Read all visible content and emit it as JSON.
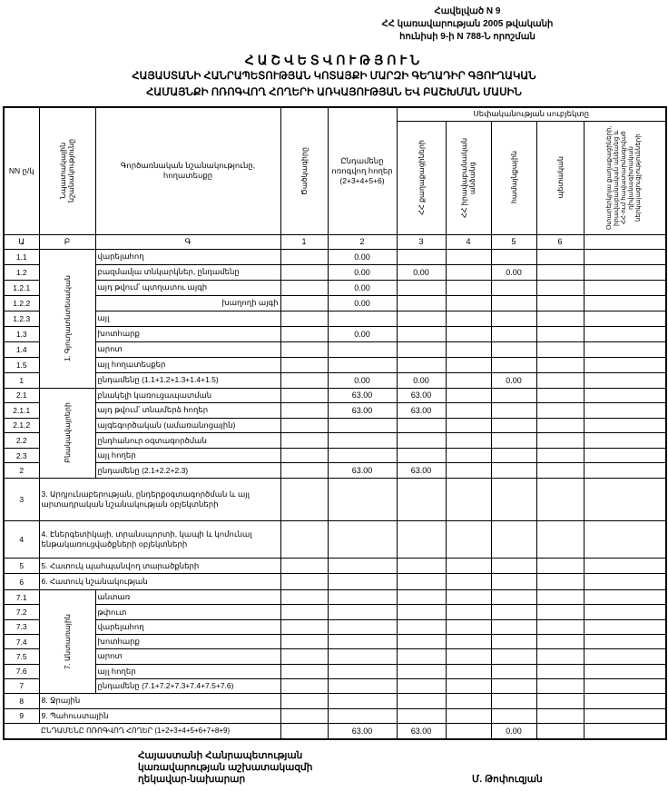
{
  "annex": {
    "line1": "Հավելված N 9",
    "line2": "ՀՀ կառավարության 2005 թվականի",
    "line3": "հունիսի 9-ի N 788-Ն որոշման"
  },
  "title": {
    "main": "ՀԱՇՎԵՏՎՈՒԹՅՈՒՆ",
    "line2": "ՀԱՅԱՍՏԱՆԻ ՀԱՆՐԱՊԵՏՈՒԹՅԱՆ ԿՈՏԱՅՔԻ ՄԱՐԶԻ ԳԵՂԱԴԻՐ ԳՅՈՒՂԱԿԱՆ",
    "line3": "ՀԱՄԱՅՆՔԻ ՈՌՈԳՎՈՂ ՀՈՂԵՐԻ ԱՌԿԱՅՈՒԹՅԱՆ ԵՎ ԲԱՇԽՄԱՆ ՄԱՍԻՆ"
  },
  "table": {
    "headers": {
      "nn": "NN ը/կ",
      "purpose": "Նպատակային նշանակությունը",
      "functional": "Գործառնական նշանակությունը, հողատեսքը",
      "code": "Ծածկագիրը",
      "total": "Ընդամենը ոռոգվող հողեր (2+3+4+5+6)",
      "ownership": "Սեփականության սուբյեկտը",
      "owners": [
        "ՀՀ քաղաքացիների",
        "ՀՀ իրավաբանական անձանց",
        "համայնքային",
        "պետական",
        "Օտարերկրյա քաղաքացիների, իրավաբանական անձանց և ՀՀ-ում հավատարմագրված դիվանագիտական ներկայացուցչությունների"
      ]
    },
    "column_numbers": [
      "Ա",
      "Բ",
      "Գ",
      "1",
      "2",
      "3",
      "4",
      "5",
      "6"
    ],
    "groups": [
      {
        "label": "1. Գյուղատնտեսական",
        "rows": [
          {
            "code": "1.1",
            "desc": "վարելահող",
            "values": [
              "",
              "0.00",
              "",
              "",
              "",
              "",
              ""
            ]
          },
          {
            "code": "1.2",
            "desc": "բազմամյա տնկարկներ, ընդամենը",
            "values": [
              "",
              "0.00",
              "0.00",
              "",
              "0.00",
              "",
              ""
            ]
          },
          {
            "code": "1.2.1",
            "desc": "այդ թվում՝ պտղատու այգի",
            "values": [
              "",
              "0.00",
              "",
              "",
              "",
              "",
              ""
            ]
          },
          {
            "code": "1.2.2",
            "desc": "խաղողի այգի",
            "indent": true,
            "values": [
              "",
              "0.00",
              "",
              "",
              "",
              "",
              ""
            ]
          },
          {
            "code": "1.2.3",
            "desc": "այլ",
            "values": [
              "",
              "",
              "",
              "",
              "",
              "",
              ""
            ]
          },
          {
            "code": "1.3",
            "desc": "խոտհարք",
            "values": [
              "",
              "0.00",
              "",
              "",
              "",
              "",
              ""
            ]
          },
          {
            "code": "1.4",
            "desc": "արոտ",
            "values": [
              "",
              "",
              "",
              "",
              "",
              "",
              ""
            ]
          },
          {
            "code": "1.5",
            "desc": "այլ հողատեսքեր",
            "values": [
              "",
              "",
              "",
              "",
              "",
              "",
              ""
            ]
          },
          {
            "code": "1",
            "desc": "ընդամենը (1.1+1.2+1.3+1.4+1.5)",
            "values": [
              "",
              "0.00",
              "0.00",
              "",
              "0.00",
              "",
              ""
            ]
          }
        ]
      },
      {
        "label": "Բնակավայրերի",
        "rows": [
          {
            "code": "2.1",
            "desc": "բնակելի կառուցապատման",
            "values": [
              "",
              "63.00",
              "63.00",
              "",
              "",
              "",
              ""
            ]
          },
          {
            "code": "2.1.1",
            "desc": "այդ թվում՝ տնամերձ հողեր",
            "values": [
              "",
              "63.00",
              "63.00",
              "",
              "",
              "",
              ""
            ]
          },
          {
            "code": "2.1.2",
            "desc": "այգեգործական (ամառանոցային)",
            "values": [
              "",
              "",
              "",
              "",
              "",
              "",
              ""
            ]
          },
          {
            "code": "2.2",
            "desc": "ընդհանուր օգտագործման",
            "values": [
              "",
              "",
              "",
              "",
              "",
              "",
              ""
            ]
          },
          {
            "code": "2.3",
            "desc": "այլ հողեր",
            "values": [
              "",
              "",
              "",
              "",
              "",
              "",
              ""
            ]
          },
          {
            "code": "2",
            "desc": "ընդամենը (2.1+2.2+2.3)",
            "values": [
              "",
              "63.00",
              "63.00",
              "",
              "",
              "",
              ""
            ]
          }
        ]
      }
    ],
    "single_rows": [
      {
        "code": "3",
        "desc": "3. Արդյունաբերության, ընդերքօգտագործման և այլ արտադրական նշանակության օբյեկտների",
        "values": [
          "",
          "",
          "",
          "",
          "",
          "",
          ""
        ]
      },
      {
        "code": "4",
        "desc": "4. Էներգետիկայի, տրանսպորտի, կապի և կոմունալ ենթակառուցվածքների օբյեկտների",
        "values": [
          "",
          "",
          "",
          "",
          "",
          "",
          ""
        ]
      },
      {
        "code": "5",
        "desc": "5. Հատուկ պահպանվող տարածքների",
        "values": [
          "",
          "",
          "",
          "",
          "",
          "",
          ""
        ]
      },
      {
        "code": "6",
        "desc": "6. Հատուկ նշանակության",
        "values": [
          "",
          "",
          "",
          "",
          "",
          "",
          ""
        ]
      }
    ],
    "forest_group": {
      "label": "7. Անտառային",
      "rows": [
        {
          "code": "7.1",
          "desc": "անտառ",
          "values": [
            "",
            "",
            "",
            "",
            "",
            "",
            ""
          ]
        },
        {
          "code": "7.2",
          "desc": "թփուտ",
          "values": [
            "",
            "",
            "",
            "",
            "",
            "",
            ""
          ]
        },
        {
          "code": "7.3",
          "desc": "վարելահող",
          "values": [
            "",
            "",
            "",
            "",
            "",
            "",
            ""
          ]
        },
        {
          "code": "7.4",
          "desc": "խոտհարք",
          "values": [
            "",
            "",
            "",
            "",
            "",
            "",
            ""
          ]
        },
        {
          "code": "7.5",
          "desc": "արոտ",
          "values": [
            "",
            "",
            "",
            "",
            "",
            "",
            ""
          ]
        },
        {
          "code": "7.6",
          "desc": "այլ հողեր",
          "values": [
            "",
            "",
            "",
            "",
            "",
            "",
            ""
          ]
        },
        {
          "code": "7",
          "desc": "ընդամենը (7.1+7.2+7.3+7.4+7.5+7.6)",
          "values": [
            "",
            "",
            "",
            "",
            "",
            "",
            ""
          ]
        }
      ]
    },
    "tail_rows": [
      {
        "code": "8",
        "desc": "8. Ջրային",
        "values": [
          "",
          "",
          "",
          "",
          "",
          "",
          ""
        ]
      },
      {
        "code": "9",
        "desc": "9. Պահուստային",
        "values": [
          "",
          "",
          "",
          "",
          "",
          "",
          ""
        ]
      }
    ],
    "total_row": {
      "desc": "ԸՆԴԱՄԵՆԸ ՈՌՈԳՎՈՂ ՀՈՂԵՐ (1+2+3+4+5+6+7+8+9)",
      "values": [
        "",
        "63.00",
        "63.00",
        "",
        "0.00",
        "",
        ""
      ]
    }
  },
  "signature": {
    "line1": "Հայաստանի Հանրապետության",
    "line2": "կառավարության աշխատակազմի",
    "line3": "ղեկավար-նախարար",
    "name": "Մ. Թոփուզյան"
  }
}
